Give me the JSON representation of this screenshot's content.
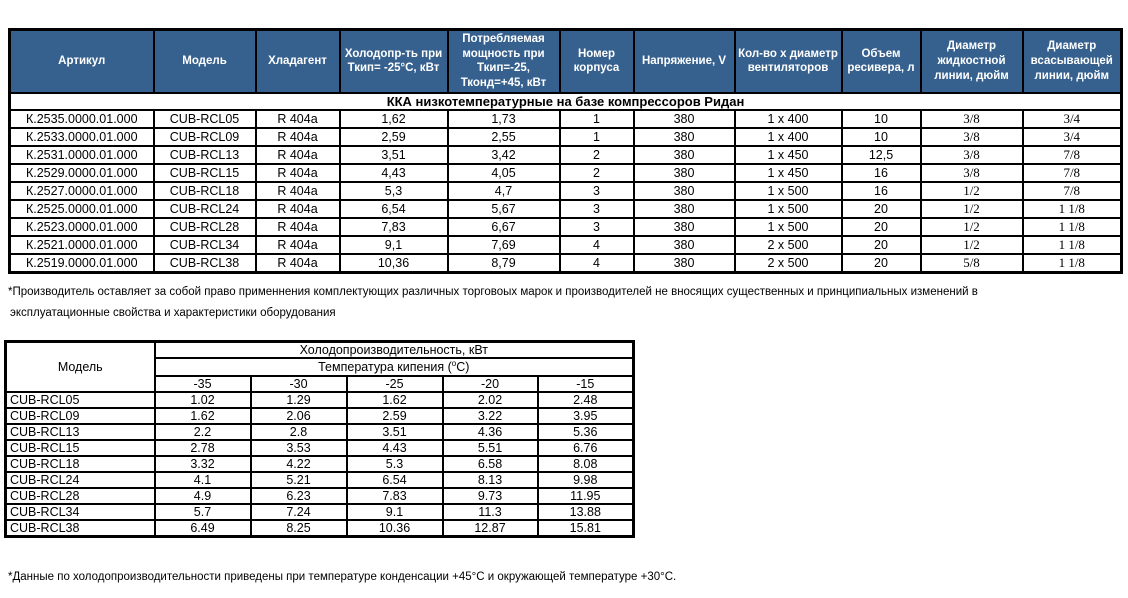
{
  "table1": {
    "headers": [
      "Артикул",
      "Модель",
      "Хладагент",
      "Холодопр-ть при Ткип= -25°С, кВт",
      "Потребляемая мощность при Ткип=-25, Тконд=+45, кВт",
      "Номер корпуса",
      "Напряжение, V",
      "Кол-во х диаметр вентиляторов",
      "Объем ресивера, л",
      "Диаметр жидкостной линии, дюйм",
      "Диаметр всасывающей линии, дюйм"
    ],
    "section_title": "ККА низкотемпературные на базе компрессоров Ридан",
    "rows": [
      [
        "К.2535.0000.01.000",
        "CUB-RCL05",
        "R 404a",
        "1,62",
        "1,73",
        "1",
        "380",
        "1 x 400",
        "10",
        "3/8",
        "3/4"
      ],
      [
        "К.2533.0000.01.000",
        "CUB-RCL09",
        "R 404a",
        "2,59",
        "2,55",
        "1",
        "380",
        "1 x 400",
        "10",
        "3/8",
        "3/4"
      ],
      [
        "К.2531.0000.01.000",
        "CUB-RCL13",
        "R 404a",
        "3,51",
        "3,42",
        "2",
        "380",
        "1 x 450",
        "12,5",
        "3/8",
        "7/8"
      ],
      [
        "К.2529.0000.01.000",
        "CUB-RCL15",
        "R 404a",
        "4,43",
        "4,05",
        "2",
        "380",
        "1 x 450",
        "16",
        "3/8",
        "7/8"
      ],
      [
        "К.2527.0000.01.000",
        "CUB-RCL18",
        "R 404a",
        "5,3",
        "4,7",
        "3",
        "380",
        "1 x 500",
        "16",
        "1/2",
        "7/8"
      ],
      [
        "К.2525.0000.01.000",
        "CUB-RCL24",
        "R 404a",
        "6,54",
        "5,67",
        "3",
        "380",
        "1 x 500",
        "20",
        "1/2",
        "1 1/8"
      ],
      [
        "К.2523.0000.01.000",
        "CUB-RCL28",
        "R 404a",
        "7,83",
        "6,67",
        "3",
        "380",
        "1 x 500",
        "20",
        "1/2",
        "1 1/8"
      ],
      [
        "К.2521.0000.01.000",
        "CUB-RCL34",
        "R 404a",
        "9,1",
        "7,69",
        "4",
        "380",
        "2 x 500",
        "20",
        "1/2",
        "1 1/8"
      ],
      [
        "К.2519.0000.01.000",
        "CUB-RCL38",
        "R 404a",
        "10,36",
        "8,79",
        "4",
        "380",
        "2 x 500",
        "20",
        "5/8",
        "1 1/8"
      ]
    ],
    "header_bg": "#36618E"
  },
  "note1": {
    "line1": "*Производитель оставляет за собой право применнения комплектующих различных торговоых марок и производителей не вносящих существенных и принципиальных изменений в",
    "line2": "эксплуатационные свойства и характеристики оборудования"
  },
  "table2": {
    "corner": "Модель",
    "capacity_header": "Холодопроизводительность, кВт",
    "boiling_prefix": "Температура кипения (",
    "boiling_sup": "о",
    "boiling_suffix": "С)",
    "ticks": [
      "-35",
      "-30",
      "-25",
      "-20",
      "-15"
    ],
    "rows": [
      [
        "CUB-RCL05",
        "1.02",
        "1.29",
        "1.62",
        "2.02",
        "2.48"
      ],
      [
        "CUB-RCL09",
        "1.62",
        "2.06",
        "2.59",
        "3.22",
        "3.95"
      ],
      [
        "CUB-RCL13",
        "2.2",
        "2.8",
        "3.51",
        "4.36",
        "5.36"
      ],
      [
        "CUB-RCL15",
        "2.78",
        "3.53",
        "4.43",
        "5.51",
        "6.76"
      ],
      [
        "CUB-RCL18",
        "3.32",
        "4.22",
        "5.3",
        "6.58",
        "8.08"
      ],
      [
        "CUB-RCL24",
        "4.1",
        "5.21",
        "6.54",
        "8.13",
        "9.98"
      ],
      [
        "CUB-RCL28",
        "4.9",
        "6.23",
        "7.83",
        "9.73",
        "11.95"
      ],
      [
        "CUB-RCL34",
        "5.7",
        "7.24",
        "9.1",
        "11.3",
        "13.88"
      ],
      [
        "CUB-RCL38",
        "6.49",
        "8.25",
        "10.36",
        "12.87",
        "15.81"
      ]
    ]
  },
  "note2": {
    "text": "*Данные по холодопроизводительности приведены при температуре конденсации +45°С и окружающей температуре +30°С."
  }
}
